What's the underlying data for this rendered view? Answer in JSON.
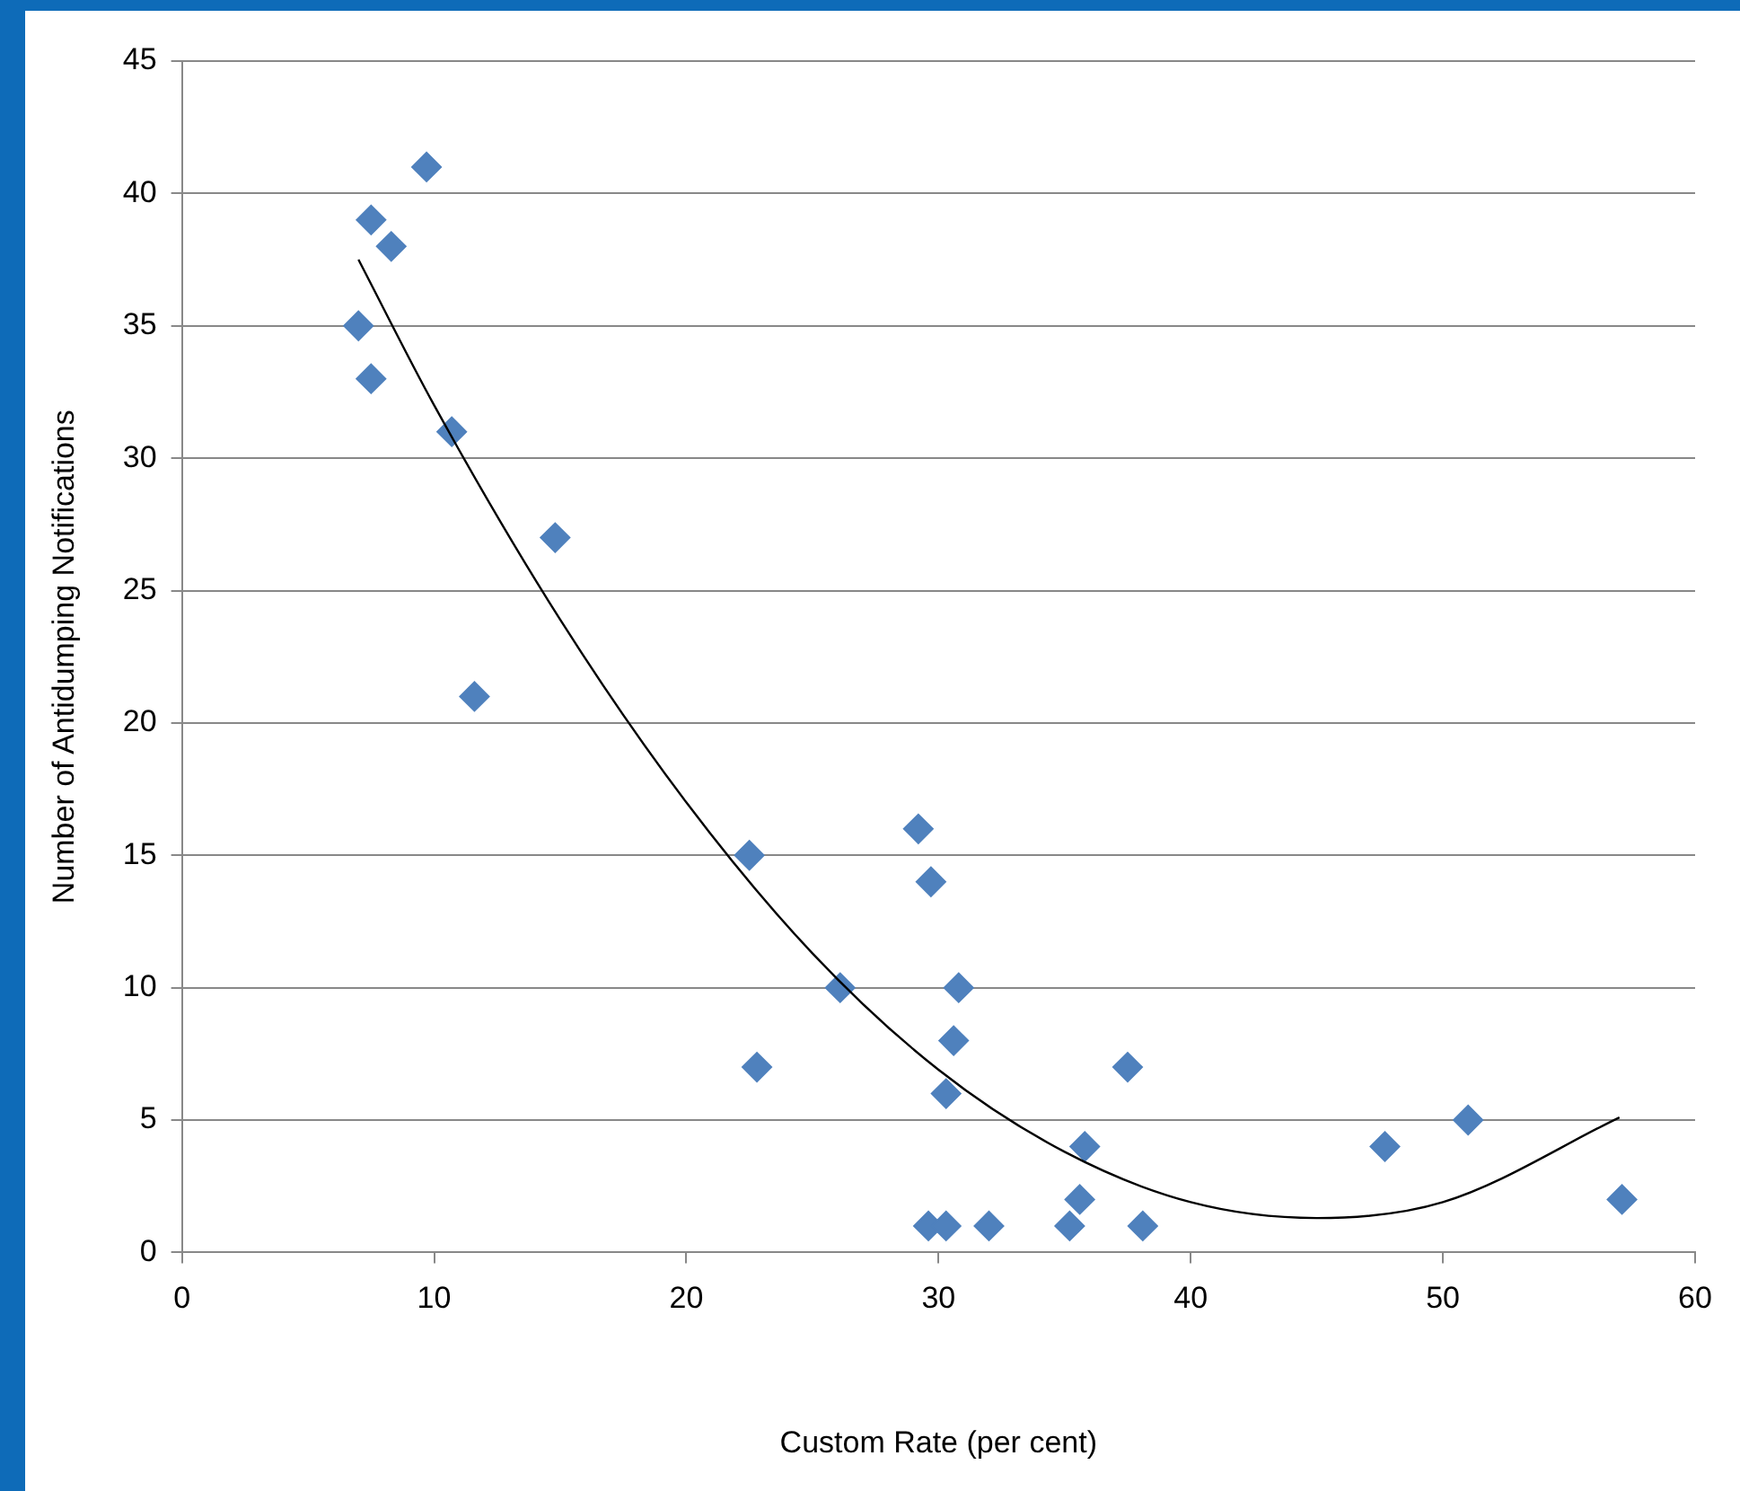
{
  "chart_data": {
    "type": "scatter",
    "xlabel": "Custom Rate (per cent)",
    "ylabel": "Number of Antidumping Notifications",
    "xlim": [
      0,
      60
    ],
    "xticks": [
      0,
      10,
      20,
      30,
      40,
      50,
      60
    ],
    "ylim": [
      0,
      45
    ],
    "yticks": [
      0,
      5,
      10,
      15,
      20,
      25,
      30,
      35,
      40,
      45
    ],
    "grid": "y",
    "legend": false,
    "marker": "diamond",
    "series": [
      {
        "color": "#4f81bd",
        "x": [
          7.0,
          7.5,
          7.5,
          8.3,
          9.7,
          10.7,
          11.6,
          14.8,
          22.5,
          22.8,
          26.1,
          29.2,
          29.7,
          29.6,
          30.3,
          30.3,
          30.6,
          30.8,
          32.0,
          35.2,
          35.6,
          35.8,
          37.5,
          38.1,
          47.7,
          51.0,
          57.1
        ],
        "values": [
          35,
          39,
          33,
          38,
          41,
          31,
          21,
          27,
          15,
          7,
          10,
          16,
          14,
          1,
          1,
          6,
          8,
          10,
          1,
          1,
          2,
          4,
          7,
          1,
          4,
          5,
          2
        ]
      },
      {
        "type": "line",
        "marker": "none",
        "color": "#000000",
        "x": [
          7,
          10,
          15,
          20,
          25,
          30,
          35,
          40,
          45,
          50,
          57
        ],
        "values": [
          37.5,
          32.0,
          23.9,
          17.0,
          11.3,
          6.9,
          3.8,
          1.9,
          1.3,
          1.9,
          5.1
        ]
      }
    ]
  }
}
